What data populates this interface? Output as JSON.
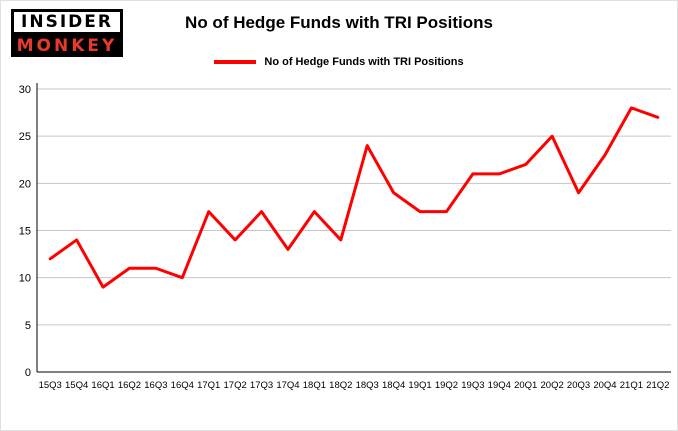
{
  "logo": {
    "line1": "INSIDER",
    "line2": "MONKEY"
  },
  "header": {
    "title": "No of Hedge Funds with TRI Positions"
  },
  "legend": {
    "label": "No of Hedge Funds with TRI Positions",
    "color": "#ff0000"
  },
  "chart_data": {
    "type": "line",
    "title": "No of Hedge Funds with TRI Positions",
    "categories": [
      "15Q3",
      "15Q4",
      "16Q1",
      "16Q2",
      "16Q3",
      "16Q4",
      "17Q1",
      "17Q2",
      "17Q3",
      "17Q4",
      "18Q1",
      "18Q2",
      "18Q3",
      "18Q4",
      "19Q1",
      "19Q2",
      "19Q3",
      "19Q4",
      "20Q1",
      "20Q2",
      "20Q3",
      "20Q4",
      "21Q1",
      "21Q2"
    ],
    "series": [
      {
        "name": "No of Hedge Funds with TRI Positions",
        "color": "#ff0000",
        "values": [
          12,
          14,
          9,
          11,
          11,
          10,
          17,
          14,
          17,
          13,
          17,
          14,
          24,
          19,
          17,
          17,
          21,
          21,
          22,
          25,
          19,
          23,
          28,
          27
        ]
      }
    ],
    "xlabel": "",
    "ylabel": "",
    "ylim": [
      0,
      30
    ],
    "yticks": [
      0,
      5,
      10,
      15,
      20,
      25,
      30
    ],
    "grid": true,
    "legend_position": "top",
    "axis_color": "#000000",
    "grid_color": "#c6c6c6"
  }
}
